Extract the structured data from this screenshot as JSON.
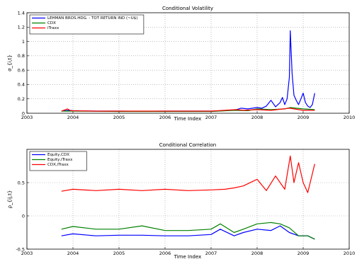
{
  "chart_data": [
    {
      "type": "line",
      "title": "Conditional Volatility",
      "xlabel": "Time Index",
      "ylabel": "σ_{i,t}",
      "xlim": [
        2003,
        2010
      ],
      "ylim": [
        0,
        1.4
      ],
      "xticks": [
        "2003",
        "2004",
        "2005",
        "2006",
        "2007",
        "2008",
        "2009",
        "2010"
      ],
      "yticks": [
        "0",
        "0.2",
        "0.4",
        "0.6",
        "0.8",
        "1",
        "1.2",
        "1.4"
      ],
      "grid": true,
      "legend_position": "top-left",
      "series": [
        {
          "name": "LEHMAN BROS.HDG. - TOT RETURN IND (~U$)",
          "color": "#0000ff",
          "points": [
            [
              2003.75,
              0.03
            ],
            [
              2003.9,
              0.04
            ],
            [
              2004.0,
              0.035
            ],
            [
              2004.5,
              0.03
            ],
            [
              2005.0,
              0.03
            ],
            [
              2005.5,
              0.028
            ],
            [
              2006.0,
              0.03
            ],
            [
              2006.5,
              0.03
            ],
            [
              2007.0,
              0.03
            ],
            [
              2007.3,
              0.035
            ],
            [
              2007.55,
              0.05
            ],
            [
              2007.65,
              0.07
            ],
            [
              2007.8,
              0.06
            ],
            [
              2008.0,
              0.08
            ],
            [
              2008.1,
              0.07
            ],
            [
              2008.2,
              0.1
            ],
            [
              2008.3,
              0.18
            ],
            [
              2008.4,
              0.09
            ],
            [
              2008.5,
              0.15
            ],
            [
              2008.55,
              0.22
            ],
            [
              2008.6,
              0.12
            ],
            [
              2008.65,
              0.2
            ],
            [
              2008.7,
              0.5
            ],
            [
              2008.72,
              1.15
            ],
            [
              2008.76,
              0.55
            ],
            [
              2008.8,
              0.25
            ],
            [
              2008.85,
              0.18
            ],
            [
              2008.9,
              0.12
            ],
            [
              2008.95,
              0.2
            ],
            [
              2009.0,
              0.28
            ],
            [
              2009.05,
              0.15
            ],
            [
              2009.1,
              0.1
            ],
            [
              2009.15,
              0.08
            ],
            [
              2009.2,
              0.12
            ],
            [
              2009.25,
              0.28
            ]
          ]
        },
        {
          "name": "CDX",
          "color": "#008000",
          "points": [
            [
              2003.75,
              0.03
            ],
            [
              2004.0,
              0.03
            ],
            [
              2005.0,
              0.025
            ],
            [
              2006.0,
              0.025
            ],
            [
              2007.0,
              0.025
            ],
            [
              2007.5,
              0.04
            ],
            [
              2007.8,
              0.035
            ],
            [
              2008.0,
              0.06
            ],
            [
              2008.3,
              0.05
            ],
            [
              2008.6,
              0.06
            ],
            [
              2008.72,
              0.08
            ],
            [
              2008.85,
              0.07
            ],
            [
              2009.0,
              0.06
            ],
            [
              2009.25,
              0.05
            ]
          ]
        },
        {
          "name": "iTraxx",
          "color": "#ff0000",
          "points": [
            [
              2003.75,
              0.03
            ],
            [
              2003.88,
              0.06
            ],
            [
              2003.95,
              0.035
            ],
            [
              2004.5,
              0.03
            ],
            [
              2005.0,
              0.03
            ],
            [
              2006.0,
              0.03
            ],
            [
              2007.0,
              0.03
            ],
            [
              2007.55,
              0.05
            ],
            [
              2007.7,
              0.04
            ],
            [
              2008.0,
              0.05
            ],
            [
              2008.3,
              0.04
            ],
            [
              2008.7,
              0.07
            ],
            [
              2008.8,
              0.06
            ],
            [
              2009.0,
              0.04
            ],
            [
              2009.25,
              0.04
            ]
          ]
        }
      ]
    },
    {
      "type": "line",
      "title": "Conditional Correlation",
      "xlabel": "Time Index",
      "ylabel": "ρ_{ij,t}",
      "xlim": [
        2003,
        2010
      ],
      "ylim": [
        -0.5,
        1
      ],
      "xticks": [
        "2003",
        "2004",
        "2005",
        "2006",
        "2007",
        "2008",
        "2009",
        "2010"
      ],
      "yticks": [
        "-0.5",
        "0",
        "0.5"
      ],
      "grid": true,
      "legend_position": "top-left",
      "series": [
        {
          "name": "Equity,CDX",
          "color": "#0000ff",
          "points": [
            [
              2003.75,
              -0.3
            ],
            [
              2004.0,
              -0.27
            ],
            [
              2004.5,
              -0.3
            ],
            [
              2005.0,
              -0.29
            ],
            [
              2005.5,
              -0.29
            ],
            [
              2006.0,
              -0.3
            ],
            [
              2006.5,
              -0.3
            ],
            [
              2007.0,
              -0.28
            ],
            [
              2007.2,
              -0.2
            ],
            [
              2007.5,
              -0.3
            ],
            [
              2007.7,
              -0.25
            ],
            [
              2008.0,
              -0.2
            ],
            [
              2008.3,
              -0.22
            ],
            [
              2008.5,
              -0.15
            ],
            [
              2008.7,
              -0.25
            ],
            [
              2008.9,
              -0.3
            ],
            [
              2009.1,
              -0.3
            ],
            [
              2009.25,
              -0.35
            ]
          ]
        },
        {
          "name": "Equity,iTraxx",
          "color": "#008000",
          "points": [
            [
              2003.75,
              -0.2
            ],
            [
              2004.0,
              -0.16
            ],
            [
              2004.5,
              -0.2
            ],
            [
              2005.0,
              -0.2
            ],
            [
              2005.5,
              -0.15
            ],
            [
              2006.0,
              -0.22
            ],
            [
              2006.5,
              -0.22
            ],
            [
              2007.0,
              -0.2
            ],
            [
              2007.2,
              -0.12
            ],
            [
              2007.5,
              -0.25
            ],
            [
              2007.7,
              -0.2
            ],
            [
              2008.0,
              -0.12
            ],
            [
              2008.3,
              -0.1
            ],
            [
              2008.5,
              -0.12
            ],
            [
              2008.7,
              -0.18
            ],
            [
              2008.9,
              -0.3
            ],
            [
              2009.1,
              -0.3
            ],
            [
              2009.25,
              -0.35
            ]
          ]
        },
        {
          "name": "CDX,iTraxx",
          "color": "#ff0000",
          "points": [
            [
              2003.75,
              0.37
            ],
            [
              2004.0,
              0.4
            ],
            [
              2004.5,
              0.38
            ],
            [
              2005.0,
              0.4
            ],
            [
              2005.5,
              0.38
            ],
            [
              2006.0,
              0.4
            ],
            [
              2006.5,
              0.38
            ],
            [
              2007.0,
              0.39
            ],
            [
              2007.3,
              0.4
            ],
            [
              2007.5,
              0.42
            ],
            [
              2007.7,
              0.45
            ],
            [
              2008.0,
              0.55
            ],
            [
              2008.2,
              0.38
            ],
            [
              2008.4,
              0.6
            ],
            [
              2008.6,
              0.4
            ],
            [
              2008.72,
              0.9
            ],
            [
              2008.8,
              0.5
            ],
            [
              2008.9,
              0.8
            ],
            [
              2009.0,
              0.5
            ],
            [
              2009.1,
              0.35
            ],
            [
              2009.25,
              0.78
            ]
          ]
        }
      ]
    }
  ]
}
